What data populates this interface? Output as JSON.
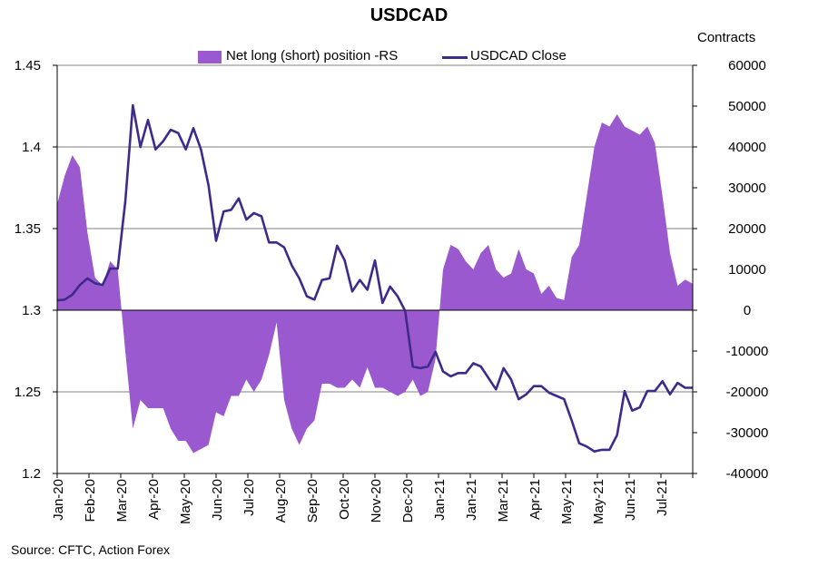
{
  "chart_data": {
    "type": "area+line",
    "title": "USDCAD",
    "right_axis_title": "Contracts",
    "source": "Source: CFTC, Action Forex",
    "legend": [
      "Net long (short) position -RS",
      "USDCAD Close"
    ],
    "legend_placement": "top",
    "colors": {
      "area": "#9b59d0",
      "line": "#3f2a8a",
      "grid": "#808080"
    },
    "x_labels": [
      "Jan-20",
      "Feb-20",
      "Mar-20",
      "Apr-20",
      "May-20",
      "Jun-20",
      "Jul-20",
      "Aug-20",
      "Sep-20",
      "Oct-20",
      "Nov-20",
      "Dec-20",
      "Jan-21",
      "Jan-21",
      "Mar-21",
      "Apr-21",
      "May-21",
      "May-21",
      "Jun-21",
      "Jul-21"
    ],
    "left_axis": {
      "min": 1.2,
      "max": 1.45,
      "ticks": [
        1.2,
        1.25,
        1.3,
        1.35,
        1.4,
        1.45
      ],
      "tick_labels": [
        "1.2",
        "1.25",
        "1.3",
        "1.35",
        "1.4",
        "1.45"
      ]
    },
    "right_axis": {
      "min": -40000,
      "max": 60000,
      "ticks": [
        -40000,
        -30000,
        -20000,
        -10000,
        0,
        10000,
        20000,
        30000,
        40000,
        50000,
        60000
      ],
      "tick_labels": [
        "-40000",
        "-30000",
        "-20000",
        "-10000",
        "0",
        "10000",
        "20000",
        "30000",
        "40000",
        "50000",
        "60000"
      ]
    },
    "grid": "horizontal",
    "series": [
      {
        "name": "Net long (short) position -RS",
        "axis": "right",
        "kind": "area",
        "values": [
          26000,
          33000,
          38000,
          35000,
          19000,
          8000,
          6000,
          12000,
          10000,
          -10000,
          -29000,
          -22000,
          -24000,
          -24000,
          -24000,
          -29000,
          -32000,
          -32000,
          -35000,
          -34000,
          -33000,
          -25000,
          -26000,
          -21000,
          -21000,
          -17000,
          -20000,
          -17000,
          -11000,
          -3000,
          -22000,
          -29000,
          -33000,
          -29000,
          -27000,
          -18000,
          -18000,
          -19000,
          -19000,
          -17000,
          -19000,
          -14000,
          -19000,
          -19000,
          -20000,
          -21000,
          -20000,
          -17000,
          -21000,
          -20000,
          -12000,
          10000,
          16000,
          15000,
          12000,
          10000,
          14000,
          16000,
          10000,
          8000,
          9000,
          15000,
          10000,
          9000,
          4000,
          6000,
          3000,
          2500,
          13000,
          16000,
          28000,
          40000,
          46000,
          45000,
          48000,
          45000,
          44000,
          43000,
          45000,
          41000,
          28000,
          14000,
          6000,
          7500,
          6500
        ],
        "label_values": []
      },
      {
        "name": "USDCAD Close",
        "axis": "left",
        "kind": "line",
        "values": [
          1.306,
          1.3065,
          1.3095,
          1.3155,
          1.3195,
          1.3165,
          1.3155,
          1.3255,
          1.3255,
          1.3665,
          1.4255,
          1.4,
          1.4165,
          1.3985,
          1.4035,
          1.4105,
          1.4085,
          1.3985,
          1.4115,
          1.3985,
          1.3765,
          1.3425,
          1.3605,
          1.3615,
          1.3685,
          1.3555,
          1.3595,
          1.3575,
          1.3415,
          1.3415,
          1.3385,
          1.3275,
          1.3195,
          1.3085,
          1.3065,
          1.3185,
          1.3195,
          1.3395,
          1.3305,
          1.3115,
          1.3185,
          1.3125,
          1.3305,
          1.3045,
          1.3145,
          1.3085,
          1.2995,
          1.2655,
          1.2645,
          1.2655,
          1.2745,
          1.2625,
          1.2595,
          1.2615,
          1.2615,
          1.2675,
          1.2655,
          1.2585,
          1.2515,
          1.2645,
          1.2575,
          1.2455,
          1.2485,
          1.2535,
          1.2535,
          1.2495,
          1.2475,
          1.2455,
          1.2325,
          1.2185,
          1.2165,
          1.2135,
          1.2145,
          1.2145,
          1.2235,
          1.2505,
          1.2385,
          1.2405,
          1.2505,
          1.2505,
          1.2565,
          1.2485,
          1.2555,
          1.2525,
          1.2525
        ]
      }
    ]
  }
}
